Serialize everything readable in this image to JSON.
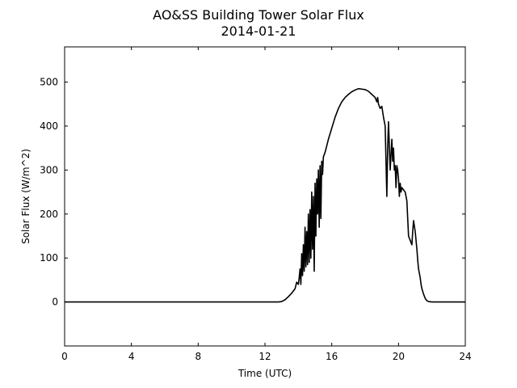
{
  "chart_data": {
    "type": "line",
    "title": "AO&SS Building Tower Solar Flux",
    "subtitle": "2014-01-21",
    "xlabel": "Time (UTC)",
    "ylabel": "Solar Flux (W/m^2)",
    "xlim": [
      0,
      24
    ],
    "ylim": [
      -100,
      580
    ],
    "xticks": [
      0,
      4,
      8,
      12,
      16,
      20,
      24
    ],
    "yticks": [
      0,
      100,
      200,
      300,
      400,
      500
    ],
    "grid": false,
    "series": [
      {
        "color": "#000000",
        "x": [
          0,
          12.8,
          13.0,
          13.2,
          13.4,
          13.6,
          13.8,
          13.9,
          14.0,
          14.05,
          14.1,
          14.15,
          14.2,
          14.25,
          14.3,
          14.35,
          14.4,
          14.45,
          14.5,
          14.55,
          14.6,
          14.65,
          14.7,
          14.75,
          14.8,
          14.85,
          14.9,
          14.95,
          15.0,
          15.05,
          15.1,
          15.15,
          15.2,
          15.25,
          15.3,
          15.35,
          15.4,
          15.45,
          15.5,
          15.6,
          15.7,
          15.8,
          16.0,
          16.2,
          16.4,
          16.6,
          16.8,
          17.0,
          17.2,
          17.4,
          17.6,
          17.8,
          18.0,
          18.2,
          18.4,
          18.6,
          18.7,
          18.75,
          18.8,
          18.9,
          19.0,
          19.1,
          19.2,
          19.3,
          19.35,
          19.4,
          19.5,
          19.6,
          19.65,
          19.7,
          19.75,
          19.8,
          19.85,
          19.9,
          19.95,
          20.0,
          20.05,
          20.1,
          20.15,
          20.2,
          20.3,
          20.4,
          20.5,
          20.6,
          20.7,
          20.8,
          20.85,
          20.9,
          21.0,
          21.1,
          21.15,
          21.2,
          21.3,
          21.35,
          21.4,
          21.5,
          21.6,
          21.7,
          21.8,
          22.0,
          22.2,
          22.4,
          22.6,
          22.8,
          23.0,
          23.2,
          23.5,
          24
        ],
        "y": [
          0,
          0,
          1,
          5,
          12,
          20,
          30,
          45,
          40,
          55,
          75,
          40,
          110,
          60,
          130,
          70,
          170,
          80,
          160,
          85,
          200,
          90,
          210,
          100,
          250,
          120,
          240,
          70,
          270,
          150,
          280,
          200,
          300,
          170,
          310,
          190,
          320,
          290,
          330,
          340,
          355,
          370,
          395,
          420,
          440,
          455,
          465,
          472,
          478,
          482,
          485,
          484,
          483,
          479,
          472,
          465,
          455,
          465,
          450,
          440,
          445,
          420,
          400,
          240,
          350,
          410,
          300,
          370,
          320,
          350,
          300,
          310,
          260,
          310,
          300,
          280,
          240,
          270,
          250,
          260,
          255,
          250,
          230,
          150,
          140,
          130,
          160,
          185,
          160,
          120,
          95,
          75,
          55,
          40,
          30,
          18,
          8,
          3,
          1,
          0,
          0,
          0,
          0,
          0,
          0,
          0,
          0,
          0
        ]
      }
    ]
  }
}
